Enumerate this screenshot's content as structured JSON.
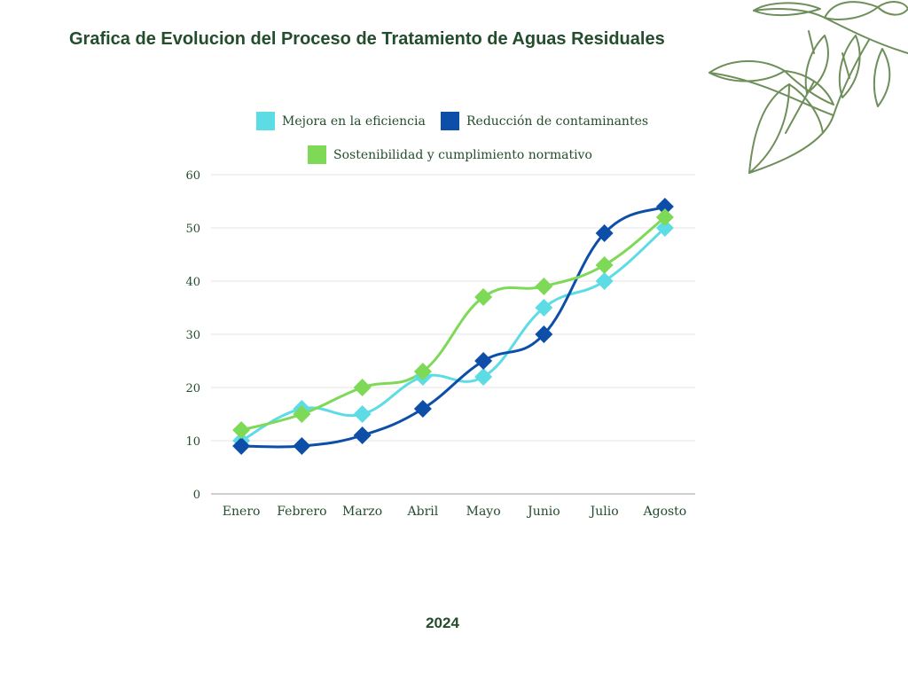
{
  "title": "Grafica de Evolucion del Proceso de Tratamiento de Aguas Residuales",
  "footer": {
    "year": "2024"
  },
  "decoration": {
    "icon": "leaf-branch-icon",
    "color": "#6f8f5a"
  },
  "chart_data": {
    "type": "line",
    "title": "",
    "xlabel": "",
    "ylabel": "",
    "categories": [
      "Enero",
      "Febrero",
      "Marzo",
      "Abril",
      "Mayo",
      "Junio",
      "Julio",
      "Agosto"
    ],
    "ylim": [
      0,
      60
    ],
    "yticks": [
      0,
      10,
      20,
      30,
      40,
      50,
      60
    ],
    "grid": true,
    "legend_position": "top",
    "smooth": true,
    "marker": "diamond",
    "series": [
      {
        "name": "Mejora en la eficiencia",
        "color": "#5ddce6",
        "values": [
          10,
          16,
          15,
          22,
          22,
          35,
          40,
          50
        ]
      },
      {
        "name": "Reducción de contaminantes",
        "color": "#0d4fa8",
        "values": [
          9,
          9,
          11,
          16,
          25,
          30,
          49,
          54
        ]
      },
      {
        "name": "Sostenibilidad y cumplimiento normativo",
        "color": "#7ed957",
        "values": [
          12,
          15,
          20,
          23,
          37,
          39,
          43,
          52
        ]
      }
    ],
    "colors": {
      "text": "#234d2c",
      "grid": "#e6e6e6",
      "axis": "#bfbfbf"
    }
  }
}
